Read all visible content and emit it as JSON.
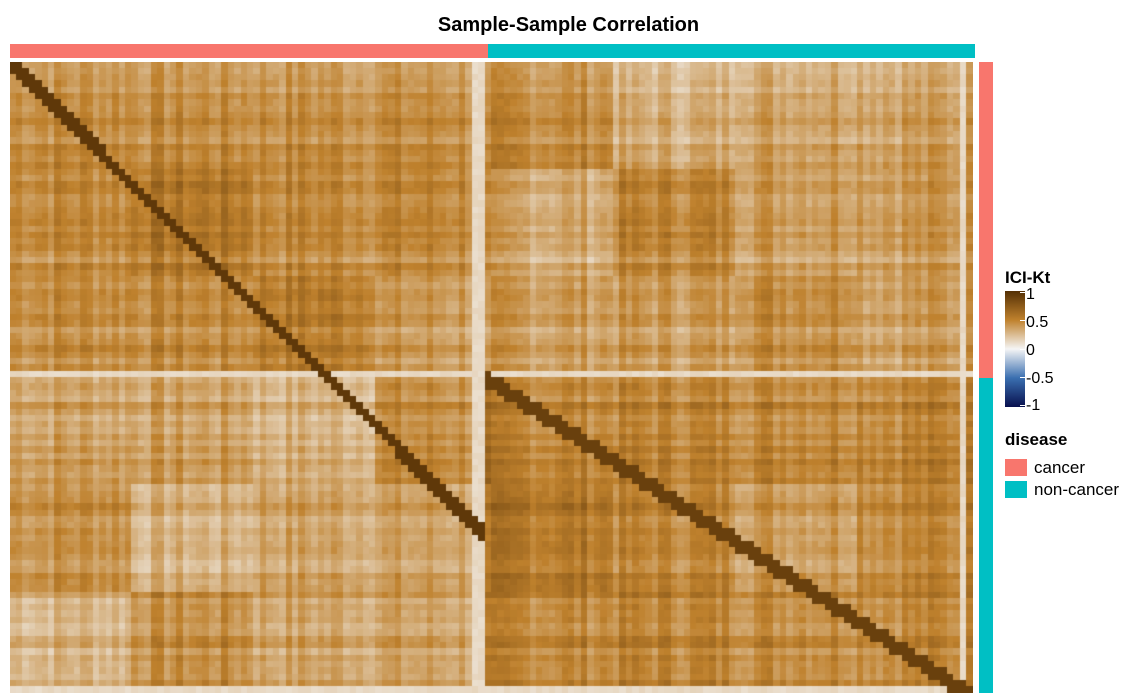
{
  "chart_data": {
    "type": "heatmap",
    "title": "Sample-Sample Correlation",
    "color_scale": {
      "title": "ICI-Kt",
      "ticks": [
        "1",
        "0.5",
        "0",
        "-0.5",
        "-1"
      ],
      "range": [
        -1,
        1
      ],
      "stops": [
        {
          "value": 1,
          "color": "#543005"
        },
        {
          "value": 0.5,
          "color": "#bf812d"
        },
        {
          "value": 0,
          "color": "#f5f5f5"
        },
        {
          "value": -0.5,
          "color": "#3a6fb0"
        },
        {
          "value": -1,
          "color": "#08104e"
        }
      ]
    },
    "annotation": {
      "title": "disease",
      "groups": [
        {
          "label": "cancer",
          "color": "#f8766d",
          "column_fraction": 0.495,
          "row_fraction": 0.5
        },
        {
          "label": "non-cancer",
          "color": "#00bfc4",
          "column_fraction": 0.505,
          "row_fraction": 0.5
        }
      ]
    },
    "matrix_summary": {
      "diagonal": 1,
      "within_cancer_block": 0.45,
      "within_noncancer_block": 0.5,
      "between_groups": 0.38,
      "outlier_samples": 0.12
    }
  }
}
